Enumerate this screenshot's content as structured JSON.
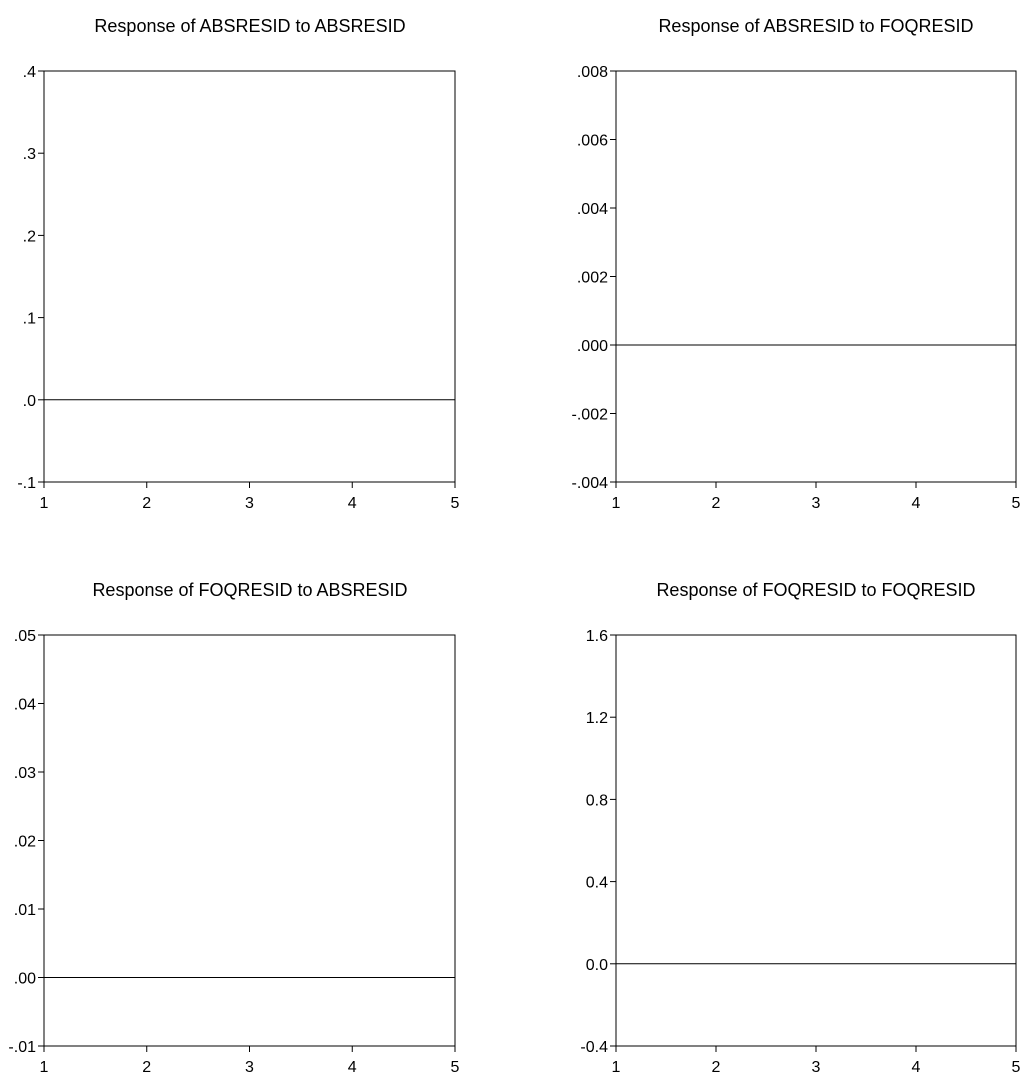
{
  "chart_data": [
    {
      "type": "line",
      "title": "Response of ABSRESID to ABSRESID",
      "x": [
        1,
        2,
        3,
        4,
        5
      ],
      "xlim": [
        1,
        5
      ],
      "x_ticks": [
        1,
        2,
        3,
        4,
        5
      ],
      "x_tick_labels": [
        "1",
        "2",
        "3",
        "4",
        "5"
      ],
      "ylim": [
        -0.1,
        0.4
      ],
      "y_ticks": [
        0.4,
        0.3,
        0.2,
        0.1,
        0.0,
        -0.1
      ],
      "y_tick_labels": [
        ".4",
        ".3",
        ".2",
        ".1",
        ".0",
        "-.1"
      ],
      "zero_line": 0,
      "grid": false,
      "series": []
    },
    {
      "type": "line",
      "title": "Response of ABSRESID to FOQRESID",
      "x": [
        1,
        2,
        3,
        4,
        5
      ],
      "xlim": [
        1,
        5
      ],
      "x_ticks": [
        1,
        2,
        3,
        4,
        5
      ],
      "x_tick_labels": [
        "1",
        "2",
        "3",
        "4",
        "5"
      ],
      "ylim": [
        -0.004,
        0.008
      ],
      "y_ticks": [
        0.008,
        0.006,
        0.004,
        0.002,
        0.0,
        -0.002,
        -0.004
      ],
      "y_tick_labels": [
        ".008",
        ".006",
        ".004",
        ".002",
        ".000",
        "-.002",
        "-.004"
      ],
      "zero_line": 0,
      "grid": false,
      "series": []
    },
    {
      "type": "line",
      "title": "Response of FOQRESID to ABSRESID",
      "x": [
        1,
        2,
        3,
        4,
        5
      ],
      "xlim": [
        1,
        5
      ],
      "x_ticks": [
        1,
        2,
        3,
        4,
        5
      ],
      "x_tick_labels": [
        "1",
        "2",
        "3",
        "4",
        "5"
      ],
      "ylim": [
        -0.01,
        0.05
      ],
      "y_ticks": [
        0.05,
        0.04,
        0.03,
        0.02,
        0.01,
        0.0,
        -0.01
      ],
      "y_tick_labels": [
        ".05",
        ".04",
        ".03",
        ".02",
        ".01",
        ".00",
        "-.01"
      ],
      "zero_line": 0,
      "grid": false,
      "series": []
    },
    {
      "type": "line",
      "title": "Response of FOQRESID to FOQRESID",
      "x": [
        1,
        2,
        3,
        4,
        5
      ],
      "xlim": [
        1,
        5
      ],
      "x_ticks": [
        1,
        2,
        3,
        4,
        5
      ],
      "x_tick_labels": [
        "1",
        "2",
        "3",
        "4",
        "5"
      ],
      "ylim": [
        -0.4,
        1.6
      ],
      "y_ticks": [
        1.6,
        1.2,
        0.8,
        0.4,
        0.0,
        -0.4
      ],
      "y_tick_labels": [
        "1.6",
        "1.2",
        "0.8",
        "0.4",
        "0.0",
        "-0.4"
      ],
      "zero_line": 0,
      "grid": false,
      "series": []
    }
  ]
}
